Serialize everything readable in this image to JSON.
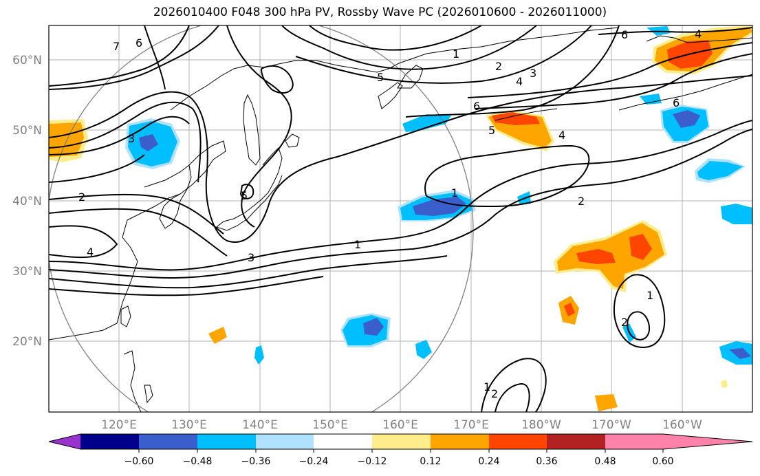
{
  "title": "2026010400 F048 300 hPa PV, Rossby Wave PC (2026010600 - 2026011000)",
  "axes": {
    "lat_labels": [
      "60°N",
      "50°N",
      "40°N",
      "30°N",
      "20°N"
    ],
    "lon_labels": [
      "120°E",
      "130°E",
      "140°E",
      "150°E",
      "160°E",
      "170°E",
      "180°W",
      "170°W",
      "160°W"
    ]
  },
  "colorbar": {
    "ticks": [
      "−0.60",
      "−0.48",
      "−0.36",
      "−0.24",
      "−0.12",
      "0.12",
      "0.24",
      "0.36",
      "0.48",
      "0.60"
    ],
    "colors": [
      "#9a32cd",
      "#00008b",
      "#3a5fcd",
      "#00bfff",
      "#b0e2ff",
      "#ffffff",
      "#ffec8b",
      "#ffa500",
      "#ff4500",
      "#b22222",
      "#ff82ab"
    ]
  },
  "contour_labels": {
    "l1": "1",
    "l2": "2",
    "l3": "3",
    "l4": "4",
    "l5": "5",
    "l6": "6",
    "l7": "7"
  }
}
